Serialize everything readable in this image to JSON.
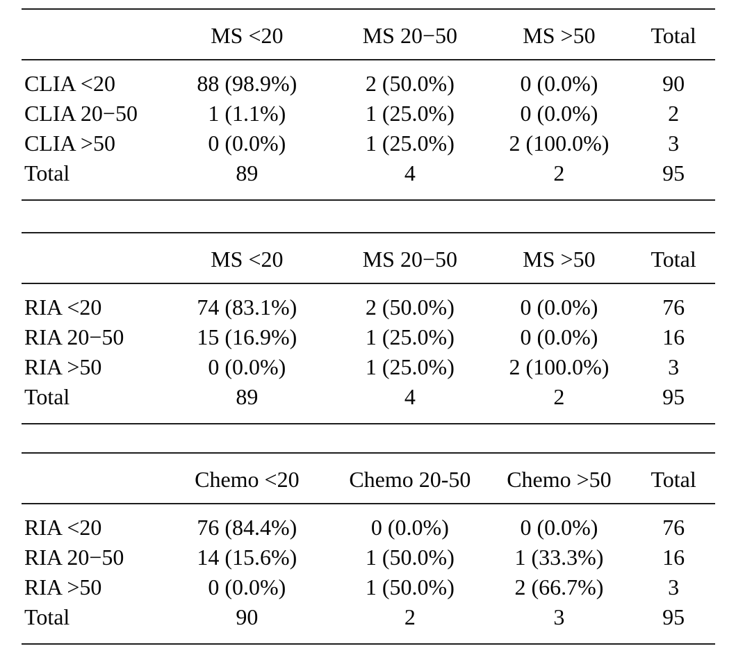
{
  "figure": {
    "background": "#ffffff",
    "text_color": "#050505",
    "rule_color": "#1c1c1c"
  },
  "tables": [
    {
      "header": [
        "",
        "MS <20",
        "MS 20−50",
        "MS >50",
        "Total"
      ],
      "rows": [
        [
          "CLIA <20",
          "88 (98.9%)",
          "2 (50.0%)",
          "0 (0.0%)",
          "90"
        ],
        [
          "CLIA 20−50",
          "1 (1.1%)",
          "1 (25.0%)",
          "0 (0.0%)",
          "2"
        ],
        [
          "CLIA >50",
          "0 (0.0%)",
          "1 (25.0%)",
          "2 (100.0%)",
          "3"
        ],
        [
          "Total",
          "89",
          "4",
          "2",
          "95"
        ]
      ]
    },
    {
      "header": [
        "",
        "MS <20",
        "MS 20−50",
        "MS >50",
        "Total"
      ],
      "rows": [
        [
          "RIA <20",
          "74 (83.1%)",
          "2 (50.0%)",
          "0 (0.0%)",
          "76"
        ],
        [
          "RIA 20−50",
          "15 (16.9%)",
          "1 (25.0%)",
          "0 (0.0%)",
          "16"
        ],
        [
          "RIA >50",
          "0 (0.0%)",
          "1 (25.0%)",
          "2 (100.0%)",
          "3"
        ],
        [
          "Total",
          "89",
          "4",
          "2",
          "95"
        ]
      ]
    },
    {
      "header": [
        "",
        "Chemo <20",
        "Chemo 20-50",
        "Chemo >50",
        "Total"
      ],
      "rows": [
        [
          "RIA <20",
          "76 (84.4%)",
          "0 (0.0%)",
          "0 (0.0%)",
          "76"
        ],
        [
          "RIA 20−50",
          "14 (15.6%)",
          "1 (50.0%)",
          "1 (33.3%)",
          "16"
        ],
        [
          "RIA >50",
          "0 (0.0%)",
          "1 (50.0%)",
          "2 (66.7%)",
          "3"
        ],
        [
          "Total",
          "90",
          "2",
          "3",
          "95"
        ]
      ]
    }
  ]
}
